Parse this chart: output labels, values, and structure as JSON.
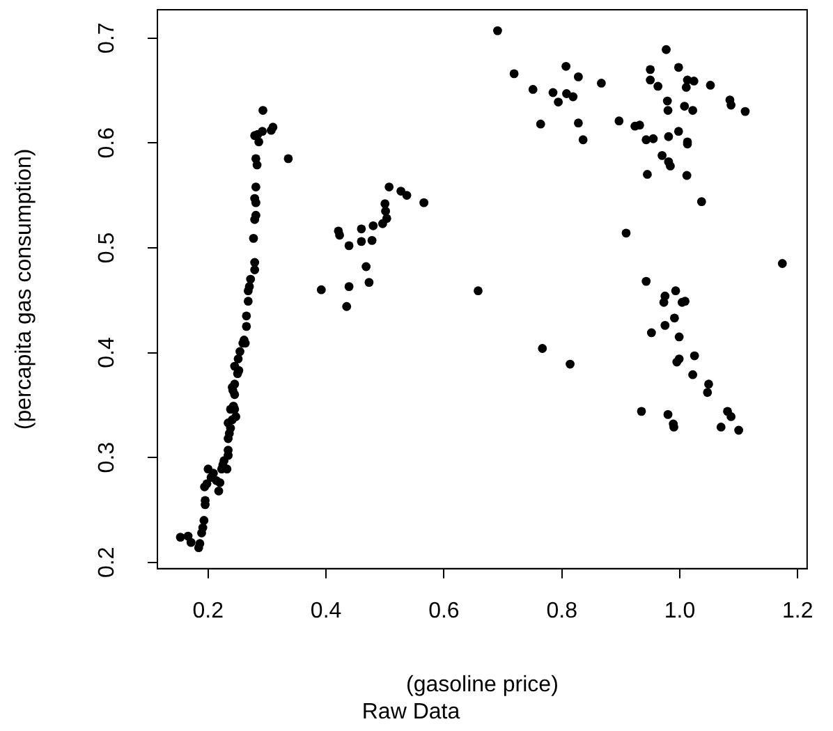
{
  "chart_data": {
    "type": "scatter",
    "title": "Raw Data",
    "xlabel": "(gasoline price)",
    "ylabel": "(percapita gas consumption)",
    "marker": "circle",
    "xlim": [
      0.114,
      1.216
    ],
    "ylim": [
      0.194,
      0.727
    ],
    "xticks": [
      0.2,
      0.4,
      0.6,
      0.8,
      {
        "value": 1.0,
        "label": "1.0"
      },
      1.2
    ],
    "yticks": [
      0.2,
      0.3,
      0.4,
      0.5,
      0.6,
      0.7
    ],
    "series": [
      {
        "color": "#000000",
        "x": [
          0.153,
          0.166,
          0.171,
          0.184,
          0.186,
          0.189,
          0.191,
          0.193,
          0.195,
          0.195,
          0.194,
          0.198,
          0.2,
          0.205,
          0.209,
          0.214,
          0.218,
          0.22,
          0.223,
          0.225,
          0.227,
          0.232,
          0.234,
          0.234,
          0.234,
          0.236,
          0.234,
          0.238,
          0.241,
          0.238,
          0.243,
          0.245,
          0.245,
          0.247,
          0.242,
          0.241,
          0.245,
          0.25,
          0.245,
          0.252,
          0.251,
          0.254,
          0.259,
          0.261,
          0.263,
          0.265,
          0.265,
          0.268,
          0.268,
          0.27,
          0.272,
          0.279,
          0.279,
          0.277,
          0.279,
          0.281,
          0.281,
          0.279,
          0.281,
          0.283,
          0.281,
          0.286,
          0.284,
          0.279,
          0.292,
          0.293,
          0.307,
          0.31,
          0.336,
          0.392,
          0.421,
          0.423,
          0.435,
          0.439,
          0.439,
          0.46,
          0.46,
          0.468,
          0.473,
          0.478,
          0.48,
          0.496,
          0.5,
          0.501,
          0.503,
          0.507,
          0.527,
          0.537,
          0.566,
          0.658,
          0.691,
          0.719,
          0.751,
          0.764,
          0.785,
          0.794,
          0.807,
          0.808,
          0.819,
          0.828,
          0.828,
          0.836,
          0.867,
          0.897,
          0.924,
          0.932,
          0.909,
          0.95,
          0.95,
          0.963,
          0.977,
          0.979,
          0.98,
          0.998,
          1.013,
          1.011,
          1.024,
          1.008,
          1.022,
          1.052,
          1.085,
          1.087,
          1.111,
          0.943,
          0.955,
          0.97,
          0.981,
          0.998,
          1.013,
          1.013,
          0.981,
          0.984,
          0.945,
          1.012,
          1.037,
          1.174,
          0.943,
          0.975,
          0.973,
          0.993,
          1.004,
          1.009,
          0.991,
          0.975,
          0.952,
          0.999,
          1.025,
          0.999,
          0.995,
          1.022,
          1.049,
          1.047,
          0.767,
          0.814,
          0.935,
          0.98,
          0.99,
          0.989,
          1.081,
          1.087,
          1.07,
          1.1
        ],
        "values": [
          0.224,
          0.225,
          0.219,
          0.214,
          0.218,
          0.228,
          0.233,
          0.24,
          0.255,
          0.259,
          0.272,
          0.275,
          0.289,
          0.281,
          0.285,
          0.278,
          0.268,
          0.276,
          0.289,
          0.293,
          0.297,
          0.289,
          0.302,
          0.307,
          0.318,
          0.323,
          0.333,
          0.328,
          0.336,
          0.346,
          0.349,
          0.36,
          0.346,
          0.339,
          0.364,
          0.367,
          0.37,
          0.38,
          0.387,
          0.383,
          0.394,
          0.401,
          0.409,
          0.412,
          0.409,
          0.425,
          0.435,
          0.449,
          0.459,
          0.463,
          0.47,
          0.479,
          0.486,
          0.509,
          0.527,
          0.531,
          0.543,
          0.547,
          0.558,
          0.579,
          0.585,
          0.601,
          0.608,
          0.607,
          0.611,
          0.631,
          0.612,
          0.615,
          0.585,
          0.46,
          0.516,
          0.512,
          0.444,
          0.502,
          0.463,
          0.506,
          0.518,
          0.482,
          0.467,
          0.507,
          0.521,
          0.523,
          0.542,
          0.535,
          0.528,
          0.558,
          0.554,
          0.55,
          0.543,
          0.459,
          0.707,
          0.666,
          0.651,
          0.618,
          0.648,
          0.639,
          0.673,
          0.647,
          0.644,
          0.663,
          0.619,
          0.603,
          0.657,
          0.621,
          0.616,
          0.617,
          0.514,
          0.67,
          0.66,
          0.654,
          0.689,
          0.64,
          0.631,
          0.672,
          0.66,
          0.653,
          0.659,
          0.635,
          0.631,
          0.655,
          0.641,
          0.636,
          0.63,
          0.603,
          0.604,
          0.588,
          0.606,
          0.611,
          0.601,
          0.599,
          0.582,
          0.578,
          0.57,
          0.569,
          0.544,
          0.485,
          0.468,
          0.454,
          0.448,
          0.459,
          0.448,
          0.449,
          0.433,
          0.426,
          0.419,
          0.415,
          0.397,
          0.394,
          0.391,
          0.379,
          0.37,
          0.362,
          0.404,
          0.389,
          0.344,
          0.341,
          0.329,
          0.332,
          0.344,
          0.339,
          0.329,
          0.326
        ]
      }
    ]
  }
}
